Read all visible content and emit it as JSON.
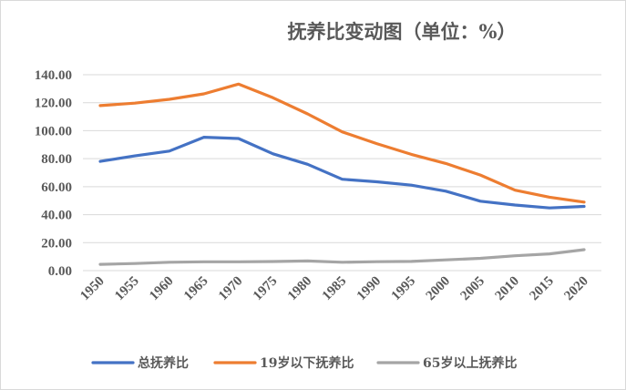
{
  "chart_data": {
    "type": "line",
    "title": "抚养比变动图（单位：%）",
    "xlabel": "",
    "ylabel": "",
    "x": [
      "1950",
      "1955",
      "1960",
      "1965",
      "1970",
      "1975",
      "1980",
      "1985",
      "1990",
      "1995",
      "2000",
      "2005",
      "2010",
      "2015",
      "2020"
    ],
    "ylim": [
      0,
      140
    ],
    "yticks": [
      "0.00",
      "20.00",
      "40.00",
      "60.00",
      "80.00",
      "100.00",
      "120.00",
      "140.00"
    ],
    "grid": true,
    "legend_position": "bottom",
    "series": [
      {
        "name": "总抚养比",
        "color": "#4472C4",
        "values": [
          78.1,
          82.0,
          85.4,
          95.3,
          94.4,
          83.5,
          76.0,
          65.3,
          63.5,
          61.1,
          56.8,
          49.6,
          46.9,
          44.8,
          45.9
        ]
      },
      {
        "name": "19岁以下抚养比",
        "color": "#ED7D31",
        "values": [
          117.9,
          119.7,
          122.4,
          126.3,
          133.3,
          123.5,
          112.0,
          99.2,
          90.8,
          83.1,
          76.6,
          68.3,
          57.5,
          52.5,
          49.0
        ]
      },
      {
        "name": "65岁以上抚养比",
        "color": "#A5A5A5",
        "values": [
          4.5,
          5.1,
          6.0,
          6.3,
          6.3,
          6.5,
          6.9,
          6.0,
          6.4,
          6.6,
          7.7,
          8.8,
          10.6,
          12.0,
          15.0
        ]
      }
    ]
  }
}
